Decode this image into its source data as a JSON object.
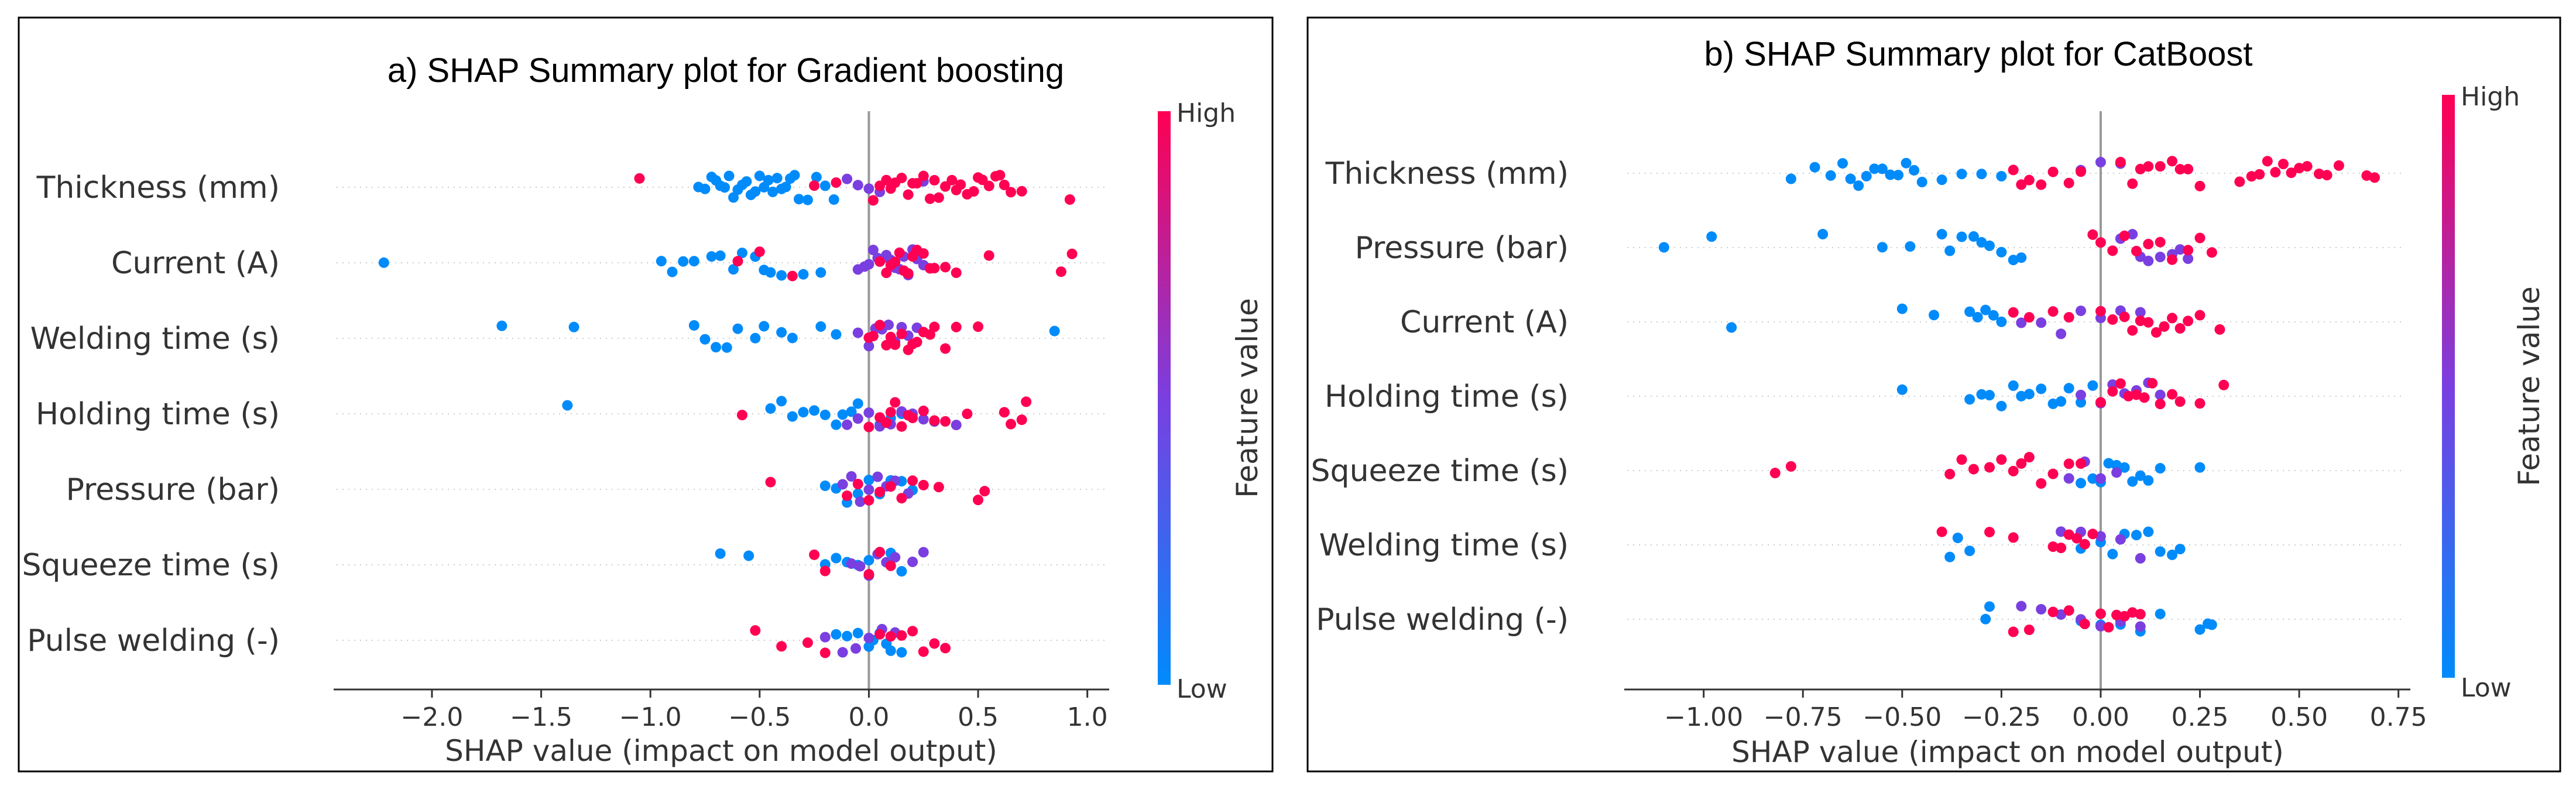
{
  "colorbar": {
    "high_label": "High",
    "low_label": "Low",
    "title": "Feature value",
    "low_color": "#008bfb",
    "mid_color": "#7a3fe0",
    "high_color": "#ff0052"
  },
  "chart_data": [
    {
      "type": "scatter",
      "subtype": "shap-beeswarm",
      "title": "a) SHAP Summary plot for Gradient boosting",
      "xlabel": "SHAP value (impact on model output)",
      "ylabel": "",
      "xlim": [
        -2.45,
        1.1
      ],
      "xticks": [
        -2.0,
        -1.5,
        -1.0,
        -0.5,
        0.0,
        0.5,
        1.0
      ],
      "xtick_labels": [
        "−2.0",
        "−1.5",
        "−1.0",
        "−0.5",
        "0.0",
        "0.5",
        "1.0"
      ],
      "features": [
        {
          "name": "Thickness (mm)",
          "low_points": [
            -0.78,
            -0.75,
            -0.72,
            -0.7,
            -0.68,
            -0.66,
            -0.64,
            -0.62,
            -0.6,
            -0.58,
            -0.56,
            -0.54,
            -0.52,
            -0.5,
            -0.48,
            -0.46,
            -0.44,
            -0.42,
            -0.4,
            -0.38,
            -0.36,
            -0.34,
            -0.32,
            -0.28,
            -0.24,
            -0.2,
            -0.16
          ],
          "mid_points": [
            -0.1,
            -0.05,
            0.0,
            0.05,
            0.25
          ],
          "high_points": [
            -1.05,
            0.02,
            0.05,
            0.08,
            0.1,
            0.12,
            0.15,
            0.18,
            0.2,
            0.22,
            0.25,
            0.28,
            0.3,
            0.32,
            0.35,
            0.38,
            0.4,
            0.42,
            0.45,
            0.48,
            0.5,
            0.52,
            0.55,
            0.58,
            0.6,
            0.62,
            0.65,
            0.7,
            0.92,
            -0.15,
            -0.25
          ]
        },
        {
          "name": "Current (A)",
          "low_points": [
            -2.22,
            -0.95,
            -0.9,
            -0.85,
            -0.8,
            -0.72,
            -0.68,
            -0.62,
            -0.58,
            -0.52,
            -0.48,
            -0.45,
            -0.4,
            -0.3,
            -0.22
          ],
          "mid_points": [
            -0.05,
            -0.02,
            0.0,
            0.02,
            0.04,
            0.06,
            0.08,
            0.1,
            0.12,
            0.14,
            0.16,
            0.18,
            0.2,
            0.22,
            0.25
          ],
          "high_points": [
            -0.6,
            -0.5,
            -0.35,
            0.05,
            0.08,
            0.1,
            0.12,
            0.14,
            0.16,
            0.18,
            0.2,
            0.22,
            0.25,
            0.28,
            0.3,
            0.35,
            0.4,
            0.55,
            0.88,
            0.93
          ]
        },
        {
          "name": "Welding time (s)",
          "low_points": [
            -1.68,
            -1.35,
            -0.8,
            -0.75,
            -0.7,
            -0.65,
            -0.6,
            -0.52,
            -0.48,
            -0.4,
            -0.35,
            -0.22,
            -0.15,
            0.85
          ],
          "mid_points": [
            -0.05,
            0.0,
            0.03,
            0.06,
            0.09,
            0.12,
            0.15,
            0.18,
            0.22
          ],
          "high_points": [
            0.0,
            0.02,
            0.05,
            0.08,
            0.1,
            0.12,
            0.15,
            0.18,
            0.2,
            0.22,
            0.25,
            0.28,
            0.3,
            0.35,
            0.4,
            0.5
          ]
        },
        {
          "name": "Holding time (s)",
          "low_points": [
            -1.38,
            -0.45,
            -0.4,
            -0.35,
            -0.3,
            -0.25,
            -0.2,
            -0.15,
            -0.12,
            -0.08,
            -0.05,
            0.05,
            0.1,
            0.15
          ],
          "mid_points": [
            -0.1,
            -0.05,
            0.0,
            0.05,
            0.1,
            0.15,
            0.2,
            0.25,
            0.3,
            0.4
          ],
          "high_points": [
            -0.58,
            0.0,
            0.05,
            0.08,
            0.1,
            0.12,
            0.15,
            0.18,
            0.2,
            0.25,
            0.3,
            0.35,
            0.45,
            0.62,
            0.65,
            0.7,
            0.72
          ]
        },
        {
          "name": "Pressure (bar)",
          "low_points": [
            -0.2,
            -0.15,
            -0.1,
            -0.05,
            0.0,
            0.05,
            0.1,
            0.15,
            0.2
          ],
          "mid_points": [
            -0.12,
            -0.08,
            -0.04,
            0.0,
            0.04,
            0.08,
            0.12,
            0.18
          ],
          "high_points": [
            -0.45,
            -0.1,
            -0.05,
            0.0,
            0.05,
            0.1,
            0.15,
            0.2,
            0.25,
            0.32,
            0.5,
            0.53
          ]
        },
        {
          "name": "Squeeze time (s)",
          "low_points": [
            -0.68,
            -0.55,
            -0.2,
            -0.15,
            -0.1,
            -0.05,
            0.0,
            0.05,
            0.1,
            0.15
          ],
          "mid_points": [
            -0.08,
            -0.04,
            0.0,
            0.04,
            0.08,
            0.12,
            0.2,
            0.25
          ],
          "high_points": [
            -0.25,
            -0.2,
            0.0,
            0.05,
            0.1
          ]
        },
        {
          "name": "Pulse welding (-)",
          "low_points": [
            -0.15,
            -0.1,
            -0.05,
            0.0,
            0.02,
            0.05,
            0.08,
            0.1,
            0.15
          ],
          "mid_points": [
            -0.2,
            -0.12,
            -0.06,
            0.0,
            0.06,
            0.12
          ],
          "high_points": [
            -0.52,
            -0.4,
            -0.28,
            -0.2,
            0.05,
            0.1,
            0.15,
            0.2,
            0.25,
            0.3,
            0.35
          ]
        }
      ]
    },
    {
      "type": "scatter",
      "subtype": "shap-beeswarm",
      "title": "b) SHAP Summary plot for CatBoost",
      "xlabel": "SHAP value (impact on model output)",
      "ylabel": "",
      "xlim": [
        -1.2,
        0.78
      ],
      "xticks": [
        -1.0,
        -0.75,
        -0.5,
        -0.25,
        0.0,
        0.25,
        0.5,
        0.75
      ],
      "xtick_labels": [
        "−1.00",
        "−0.75",
        "−0.50",
        "−0.25",
        "0.00",
        "0.25",
        "0.50",
        "0.75"
      ],
      "features": [
        {
          "name": "Thickness (mm)",
          "low_points": [
            -0.78,
            -0.72,
            -0.68,
            -0.65,
            -0.63,
            -0.61,
            -0.59,
            -0.57,
            -0.55,
            -0.53,
            -0.51,
            -0.49,
            -0.47,
            -0.45,
            -0.4,
            -0.35,
            -0.3,
            -0.25
          ],
          "mid_points": [
            -0.05,
            0.0,
            0.05
          ],
          "high_points": [
            -0.22,
            -0.2,
            -0.18,
            -0.15,
            -0.12,
            -0.08,
            -0.05,
            0.05,
            0.08,
            0.1,
            0.12,
            0.15,
            0.18,
            0.2,
            0.22,
            0.25,
            0.35,
            0.38,
            0.4,
            0.42,
            0.44,
            0.46,
            0.48,
            0.5,
            0.52,
            0.55,
            0.57,
            0.6,
            0.67,
            0.69
          ]
        },
        {
          "name": "Pressure (bar)",
          "low_points": [
            -1.1,
            -0.98,
            -0.7,
            -0.55,
            -0.48,
            -0.4,
            -0.38,
            -0.35,
            -0.32,
            -0.3,
            -0.28,
            -0.25,
            -0.22,
            -0.2
          ],
          "mid_points": [
            0.05,
            0.08,
            0.1,
            0.12,
            0.15,
            0.18,
            0.2,
            0.22
          ],
          "high_points": [
            -0.02,
            0.0,
            0.03,
            0.06,
            0.09,
            0.12,
            0.15,
            0.18,
            0.22,
            0.25,
            0.28
          ]
        },
        {
          "name": "Current (A)",
          "low_points": [
            -0.93,
            -0.5,
            -0.42,
            -0.33,
            -0.31,
            -0.29,
            -0.27,
            -0.25
          ],
          "mid_points": [
            -0.2,
            -0.15,
            -0.1,
            -0.05,
            0.0,
            0.05,
            0.1
          ],
          "high_points": [
            -0.22,
            -0.18,
            -0.12,
            -0.08,
            0.0,
            0.03,
            0.06,
            0.08,
            0.1,
            0.12,
            0.14,
            0.16,
            0.18,
            0.2,
            0.22,
            0.25,
            0.3
          ]
        },
        {
          "name": "Holding time (s)",
          "low_points": [
            -0.5,
            -0.33,
            -0.3,
            -0.28,
            -0.25,
            -0.22,
            -0.2,
            -0.18,
            -0.15,
            -0.12,
            -0.1,
            -0.08,
            -0.05,
            -0.02
          ],
          "mid_points": [
            -0.05,
            0.0,
            0.03,
            0.06,
            0.09,
            0.12,
            0.15
          ],
          "high_points": [
            0.0,
            0.03,
            0.05,
            0.07,
            0.09,
            0.11,
            0.13,
            0.15,
            0.18,
            0.2,
            0.25,
            0.31
          ]
        },
        {
          "name": "Squeeze time (s)",
          "low_points": [
            -0.05,
            -0.02,
            0.0,
            0.02,
            0.04,
            0.06,
            0.08,
            0.1,
            0.12,
            0.15,
            0.25
          ],
          "mid_points": [
            -0.08,
            -0.04,
            0.0,
            0.04
          ],
          "high_points": [
            -0.82,
            -0.78,
            -0.38,
            -0.35,
            -0.32,
            -0.28,
            -0.25,
            -0.22,
            -0.2,
            -0.18,
            -0.15,
            -0.12,
            -0.08,
            -0.05
          ]
        },
        {
          "name": "Welding time (s)",
          "low_points": [
            -0.38,
            -0.36,
            -0.33,
            -0.05,
            0.0,
            0.03,
            0.06,
            0.09,
            0.12,
            0.15,
            0.18,
            0.2
          ],
          "mid_points": [
            -0.1,
            -0.05,
            0.0,
            0.05,
            0.1
          ],
          "high_points": [
            -0.4,
            -0.28,
            -0.22,
            -0.12,
            -0.1,
            -0.08,
            -0.06,
            -0.04,
            -0.02
          ]
        },
        {
          "name": "Pulse welding (-)",
          "low_points": [
            -0.29,
            -0.28,
            -0.05,
            0.0,
            0.05,
            0.1,
            0.15,
            0.25,
            0.27,
            0.28
          ],
          "mid_points": [
            -0.2,
            -0.15,
            -0.1,
            -0.05,
            0.0,
            0.05,
            0.1
          ],
          "high_points": [
            -0.22,
            -0.18,
            -0.12,
            -0.08,
            -0.04,
            0.0,
            0.02,
            0.04,
            0.06,
            0.08,
            0.1
          ]
        }
      ]
    }
  ]
}
